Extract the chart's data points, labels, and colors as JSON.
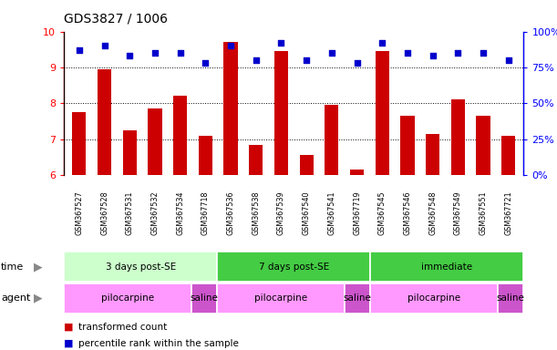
{
  "title": "GDS3827 / 1006",
  "samples": [
    "GSM367527",
    "GSM367528",
    "GSM367531",
    "GSM367532",
    "GSM367534",
    "GSM367718",
    "GSM367536",
    "GSM367538",
    "GSM367539",
    "GSM367540",
    "GSM367541",
    "GSM367719",
    "GSM367545",
    "GSM367546",
    "GSM367548",
    "GSM367549",
    "GSM367551",
    "GSM367721"
  ],
  "bar_values": [
    7.75,
    8.95,
    7.25,
    7.85,
    8.2,
    7.1,
    9.7,
    6.85,
    9.45,
    6.55,
    7.95,
    6.15,
    9.45,
    7.65,
    7.15,
    8.1,
    7.65,
    7.1
  ],
  "dot_values": [
    87,
    90,
    83,
    85,
    85,
    78,
    90,
    80,
    92,
    80,
    85,
    78,
    92,
    85,
    83,
    85,
    85,
    80
  ],
  "bar_color": "#cc0000",
  "dot_color": "#0000cc",
  "ylim_left": [
    6,
    10
  ],
  "ylim_right": [
    0,
    100
  ],
  "yticks_left": [
    6,
    7,
    8,
    9,
    10
  ],
  "yticks_right": [
    0,
    25,
    50,
    75,
    100
  ],
  "ytick_labels_right": [
    "0%",
    "25%",
    "50%",
    "75%",
    "100%"
  ],
  "hlines": [
    7,
    8,
    9
  ],
  "time_groups": [
    {
      "label": "3 days post-SE",
      "start": 0,
      "end": 6,
      "color": "#ccffcc"
    },
    {
      "label": "7 days post-SE",
      "start": 6,
      "end": 12,
      "color": "#44cc44"
    },
    {
      "label": "immediate",
      "start": 12,
      "end": 18,
      "color": "#44cc44"
    }
  ],
  "time_colors": [
    "#ccffcc",
    "#44cc44",
    "#44cc44"
  ],
  "agent_groups": [
    {
      "label": "pilocarpine",
      "start": 0,
      "end": 5,
      "color": "#ff99ff"
    },
    {
      "label": "saline",
      "start": 5,
      "end": 6,
      "color": "#cc55cc"
    },
    {
      "label": "pilocarpine",
      "start": 6,
      "end": 11,
      "color": "#ff99ff"
    },
    {
      "label": "saline",
      "start": 11,
      "end": 12,
      "color": "#cc55cc"
    },
    {
      "label": "pilocarpine",
      "start": 12,
      "end": 17,
      "color": "#ff99ff"
    },
    {
      "label": "saline",
      "start": 17,
      "end": 18,
      "color": "#cc55cc"
    }
  ],
  "legend_bar_label": "transformed count",
  "legend_dot_label": "percentile rank within the sample",
  "bg_color": "#ffffff",
  "label_area_color": "#d8d8d8",
  "chart_bg": "#ffffff"
}
